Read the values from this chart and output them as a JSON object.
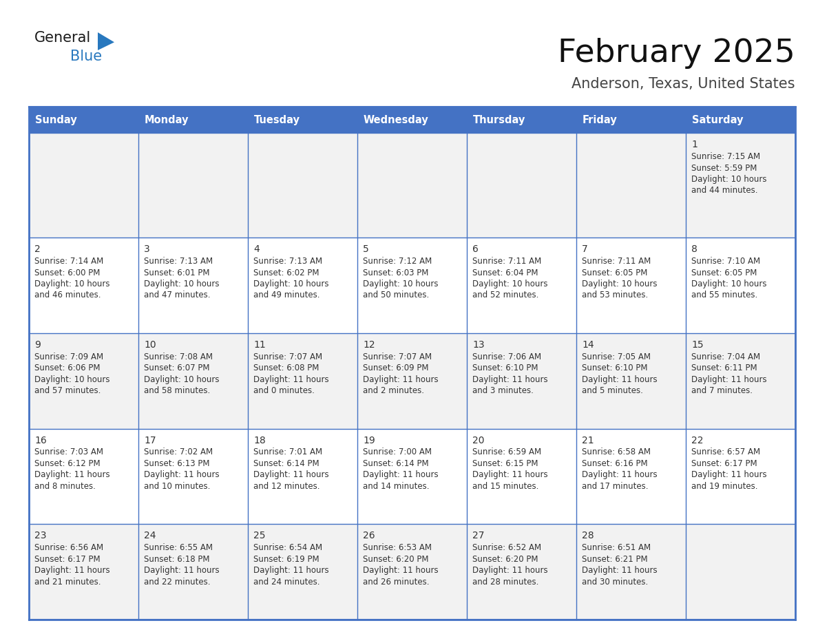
{
  "title": "February 2025",
  "subtitle": "Anderson, Texas, United States",
  "days_of_week": [
    "Sunday",
    "Monday",
    "Tuesday",
    "Wednesday",
    "Thursday",
    "Friday",
    "Saturday"
  ],
  "header_bg": "#4472C4",
  "header_text": "#FFFFFF",
  "cell_bg_row0": "#F2F2F2",
  "cell_bg_row1": "#FFFFFF",
  "cell_bg_row2": "#F2F2F2",
  "cell_bg_row3": "#FFFFFF",
  "cell_bg_row4": "#F2F2F2",
  "border_color": "#4472C4",
  "day_num_color": "#333333",
  "cell_text_color": "#333333",
  "logo_general_color": "#1a1a1a",
  "logo_blue_color": "#2878BE",
  "calendar_data": [
    [
      null,
      null,
      null,
      null,
      null,
      null,
      {
        "day": 1,
        "sunrise": "7:15 AM",
        "sunset": "5:59 PM",
        "daylight": "10 hours and 44 minutes."
      }
    ],
    [
      {
        "day": 2,
        "sunrise": "7:14 AM",
        "sunset": "6:00 PM",
        "daylight": "10 hours and 46 minutes."
      },
      {
        "day": 3,
        "sunrise": "7:13 AM",
        "sunset": "6:01 PM",
        "daylight": "10 hours and 47 minutes."
      },
      {
        "day": 4,
        "sunrise": "7:13 AM",
        "sunset": "6:02 PM",
        "daylight": "10 hours and 49 minutes."
      },
      {
        "day": 5,
        "sunrise": "7:12 AM",
        "sunset": "6:03 PM",
        "daylight": "10 hours and 50 minutes."
      },
      {
        "day": 6,
        "sunrise": "7:11 AM",
        "sunset": "6:04 PM",
        "daylight": "10 hours and 52 minutes."
      },
      {
        "day": 7,
        "sunrise": "7:11 AM",
        "sunset": "6:05 PM",
        "daylight": "10 hours and 53 minutes."
      },
      {
        "day": 8,
        "sunrise": "7:10 AM",
        "sunset": "6:05 PM",
        "daylight": "10 hours and 55 minutes."
      }
    ],
    [
      {
        "day": 9,
        "sunrise": "7:09 AM",
        "sunset": "6:06 PM",
        "daylight": "10 hours and 57 minutes."
      },
      {
        "day": 10,
        "sunrise": "7:08 AM",
        "sunset": "6:07 PM",
        "daylight": "10 hours and 58 minutes."
      },
      {
        "day": 11,
        "sunrise": "7:07 AM",
        "sunset": "6:08 PM",
        "daylight": "11 hours and 0 minutes."
      },
      {
        "day": 12,
        "sunrise": "7:07 AM",
        "sunset": "6:09 PM",
        "daylight": "11 hours and 2 minutes."
      },
      {
        "day": 13,
        "sunrise": "7:06 AM",
        "sunset": "6:10 PM",
        "daylight": "11 hours and 3 minutes."
      },
      {
        "day": 14,
        "sunrise": "7:05 AM",
        "sunset": "6:10 PM",
        "daylight": "11 hours and 5 minutes."
      },
      {
        "day": 15,
        "sunrise": "7:04 AM",
        "sunset": "6:11 PM",
        "daylight": "11 hours and 7 minutes."
      }
    ],
    [
      {
        "day": 16,
        "sunrise": "7:03 AM",
        "sunset": "6:12 PM",
        "daylight": "11 hours and 8 minutes."
      },
      {
        "day": 17,
        "sunrise": "7:02 AM",
        "sunset": "6:13 PM",
        "daylight": "11 hours and 10 minutes."
      },
      {
        "day": 18,
        "sunrise": "7:01 AM",
        "sunset": "6:14 PM",
        "daylight": "11 hours and 12 minutes."
      },
      {
        "day": 19,
        "sunrise": "7:00 AM",
        "sunset": "6:14 PM",
        "daylight": "11 hours and 14 minutes."
      },
      {
        "day": 20,
        "sunrise": "6:59 AM",
        "sunset": "6:15 PM",
        "daylight": "11 hours and 15 minutes."
      },
      {
        "day": 21,
        "sunrise": "6:58 AM",
        "sunset": "6:16 PM",
        "daylight": "11 hours and 17 minutes."
      },
      {
        "day": 22,
        "sunrise": "6:57 AM",
        "sunset": "6:17 PM",
        "daylight": "11 hours and 19 minutes."
      }
    ],
    [
      {
        "day": 23,
        "sunrise": "6:56 AM",
        "sunset": "6:17 PM",
        "daylight": "11 hours and 21 minutes."
      },
      {
        "day": 24,
        "sunrise": "6:55 AM",
        "sunset": "6:18 PM",
        "daylight": "11 hours and 22 minutes."
      },
      {
        "day": 25,
        "sunrise": "6:54 AM",
        "sunset": "6:19 PM",
        "daylight": "11 hours and 24 minutes."
      },
      {
        "day": 26,
        "sunrise": "6:53 AM",
        "sunset": "6:20 PM",
        "daylight": "11 hours and 26 minutes."
      },
      {
        "day": 27,
        "sunrise": "6:52 AM",
        "sunset": "6:20 PM",
        "daylight": "11 hours and 28 minutes."
      },
      {
        "day": 28,
        "sunrise": "6:51 AM",
        "sunset": "6:21 PM",
        "daylight": "11 hours and 30 minutes."
      },
      null
    ]
  ]
}
